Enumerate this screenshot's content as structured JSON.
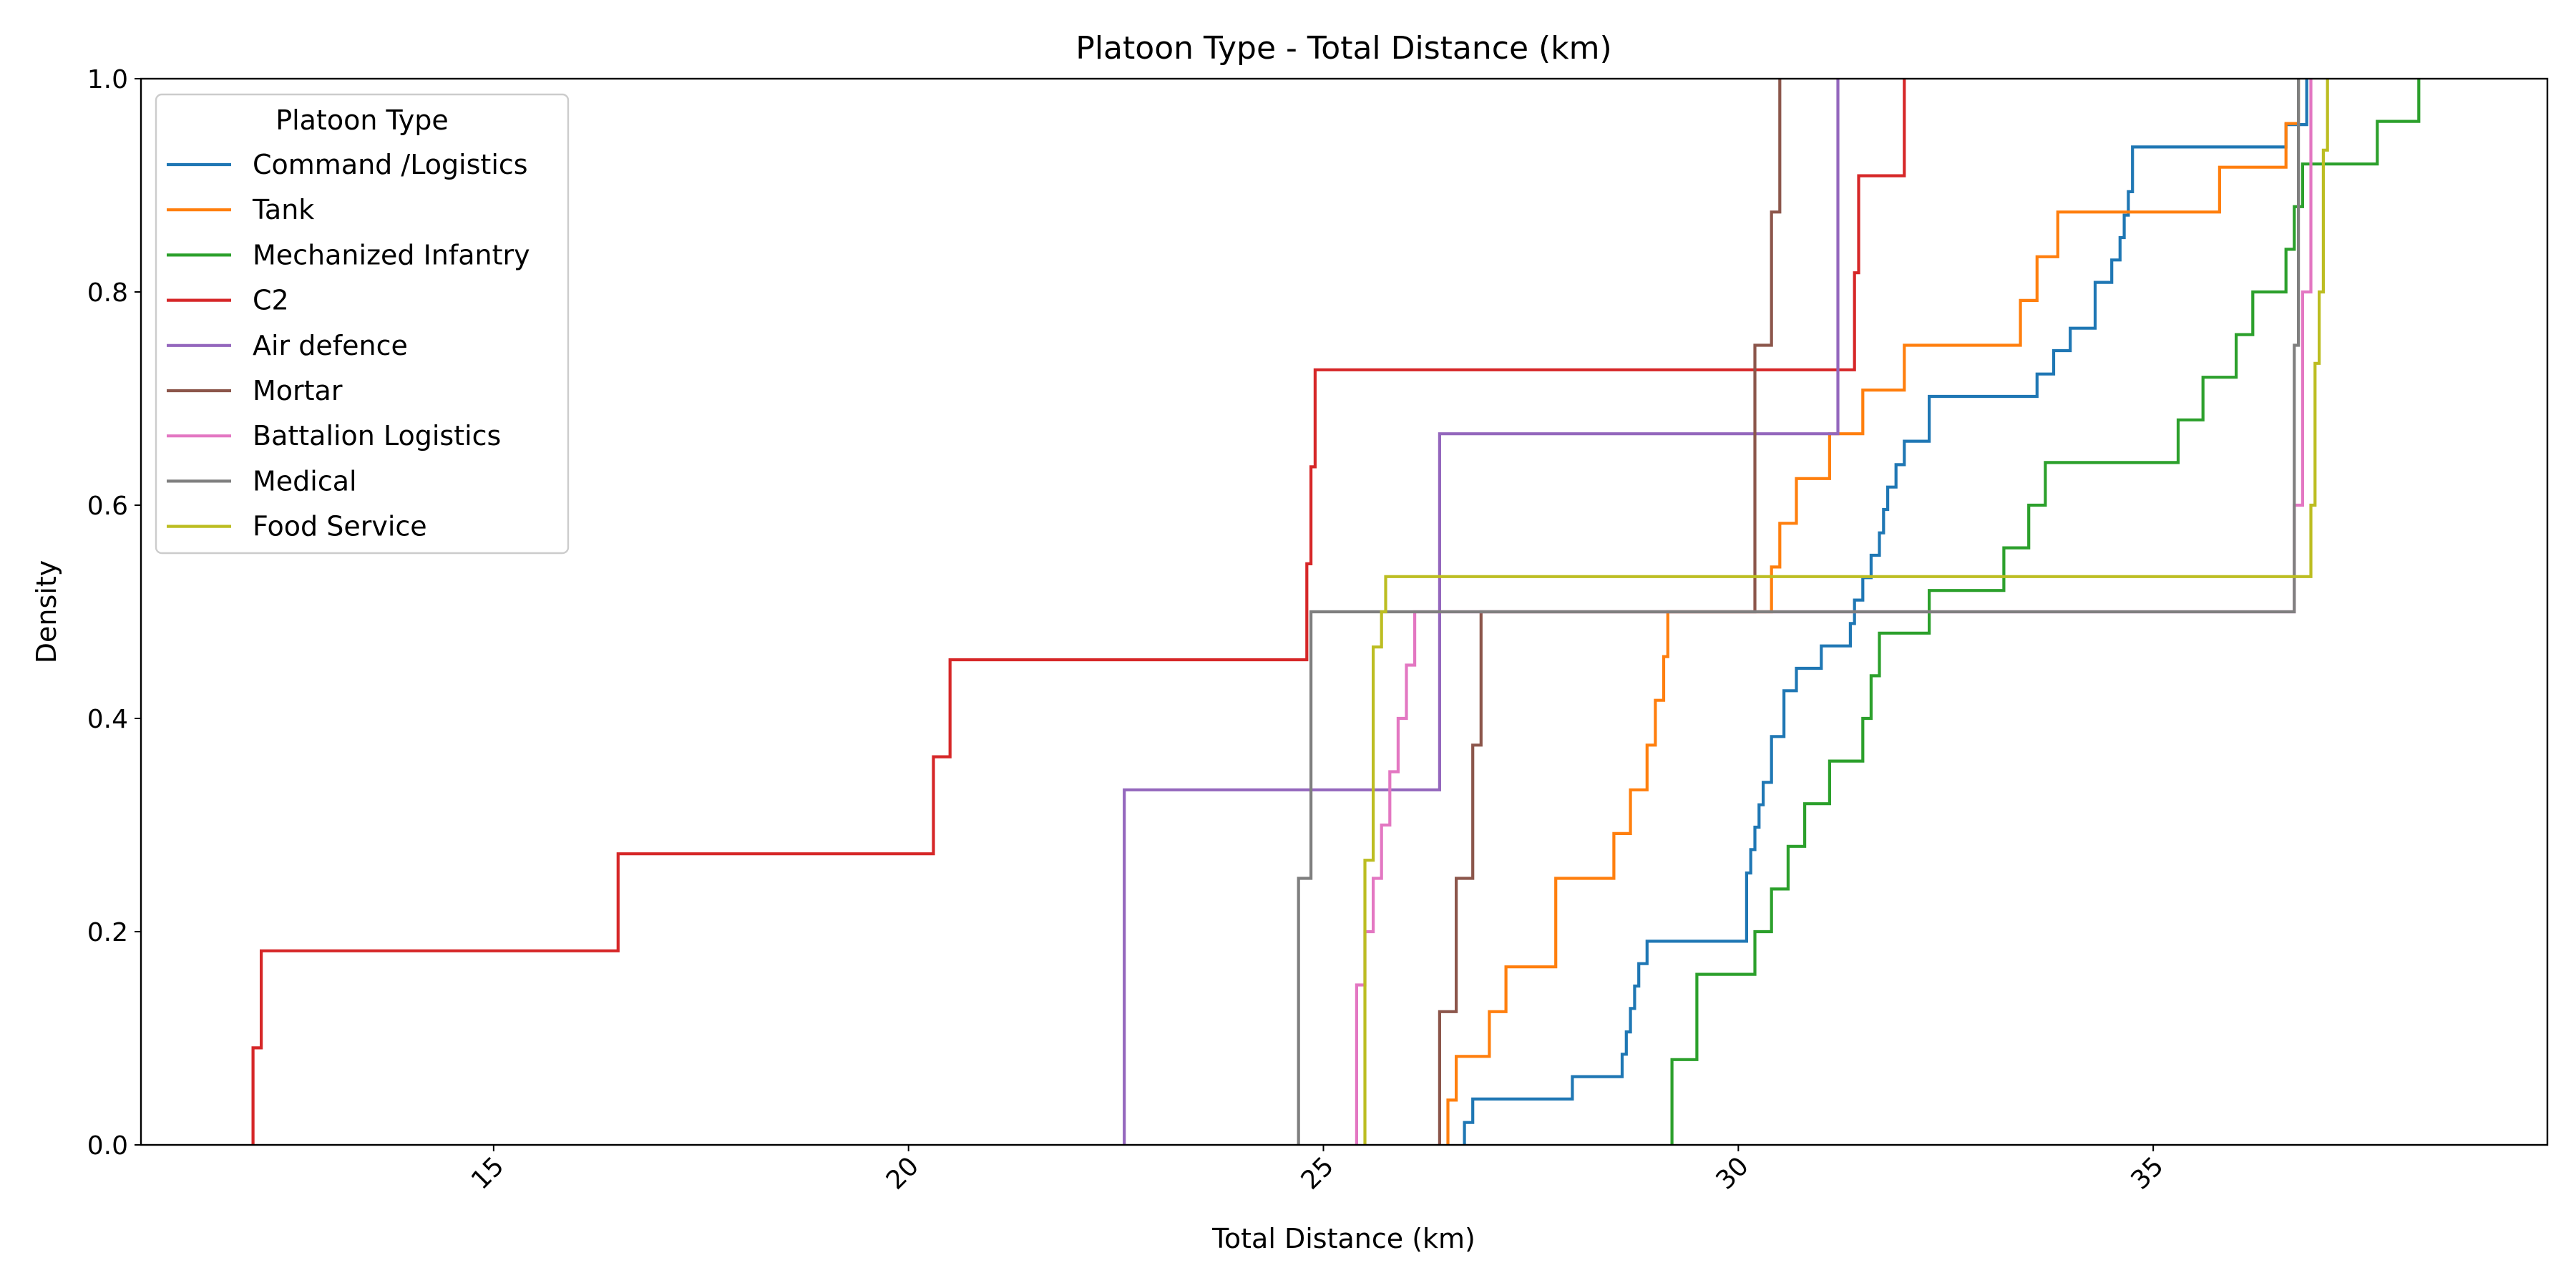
{
  "chart_data": {
    "type": "line",
    "step": true,
    "title": "Platoon Type - Total Distance (km)",
    "xlabel": "Total Distance (km)",
    "ylabel": "Density",
    "xlim": [
      10.75,
      39.75
    ],
    "ylim": [
      0,
      1
    ],
    "xticks": [
      15,
      20,
      25,
      30,
      35
    ],
    "yticks": [
      0.0,
      0.2,
      0.4,
      0.6,
      0.8,
      1.0
    ],
    "x_tick_rotation": 45,
    "grid": false,
    "legend": {
      "title": "Platoon Type",
      "position": "upper-left"
    },
    "series": [
      {
        "name": "Command /Logistics",
        "color": "#1f77b4",
        "x": [
          26.7,
          26.8,
          28.0,
          28.6,
          28.65,
          28.7,
          28.75,
          28.8,
          28.9,
          30.1,
          30.15,
          30.2,
          30.25,
          30.3,
          30.4,
          30.55,
          30.7,
          31.0,
          31.35,
          31.4,
          31.5,
          31.6,
          31.7,
          31.75,
          31.8,
          31.9,
          32.0,
          32.3,
          33.6,
          33.8,
          34.0,
          34.3,
          34.5,
          34.6,
          34.65,
          34.7,
          34.75,
          36.6,
          36.85
        ],
        "y": [
          0.021,
          0.043,
          0.064,
          0.085,
          0.106,
          0.128,
          0.149,
          0.17,
          0.191,
          0.255,
          0.277,
          0.298,
          0.319,
          0.34,
          0.383,
          0.426,
          0.447,
          0.468,
          0.489,
          0.511,
          0.532,
          0.553,
          0.574,
          0.596,
          0.617,
          0.638,
          0.66,
          0.702,
          0.723,
          0.745,
          0.766,
          0.809,
          0.83,
          0.851,
          0.872,
          0.894,
          0.936,
          0.957,
          1.0
        ]
      },
      {
        "name": "Tank",
        "color": "#ff7f0e",
        "x": [
          26.5,
          26.6,
          27.0,
          27.2,
          27.8,
          28.5,
          28.7,
          28.9,
          29.0,
          29.1,
          29.15,
          29.2,
          29.3,
          29.35,
          30.4,
          30.5,
          30.7,
          31.1,
          31.5,
          32.0,
          32.2,
          33.4,
          33.6,
          33.85,
          35.8,
          36.6,
          36.75
        ],
        "y": [
          0.042,
          0.083,
          0.125,
          0.167,
          0.25,
          0.292,
          0.333,
          0.375,
          0.417,
          0.458,
          0.5,
          0.5,
          0.5,
          0.5,
          0.542,
          0.583,
          0.625,
          0.667,
          0.708,
          0.75,
          0.75,
          0.792,
          0.833,
          0.875,
          0.917,
          0.958,
          1.0
        ]
      },
      {
        "name": "Mechanized Infantry",
        "color": "#2ca02c",
        "x": [
          29.2,
          29.5,
          30.2,
          30.4,
          30.6,
          30.8,
          31.1,
          31.5,
          31.6,
          31.7,
          32.3,
          33.2,
          33.5,
          33.7,
          35.3,
          35.6,
          36.0,
          36.2,
          36.6,
          36.7,
          36.8,
          37.7,
          38.2
        ],
        "y": [
          0.08,
          0.16,
          0.2,
          0.24,
          0.28,
          0.32,
          0.36,
          0.4,
          0.44,
          0.48,
          0.52,
          0.56,
          0.6,
          0.64,
          0.68,
          0.72,
          0.76,
          0.8,
          0.84,
          0.88,
          0.92,
          0.96,
          1.0
        ]
      },
      {
        "name": "C2",
        "color": "#d62728",
        "x": [
          12.1,
          12.2,
          16.5,
          20.3,
          20.5,
          24.8,
          24.85,
          24.9,
          31.4,
          31.45,
          32.0
        ],
        "y": [
          0.091,
          0.182,
          0.273,
          0.364,
          0.455,
          0.545,
          0.636,
          0.727,
          0.818,
          0.909,
          1.0
        ]
      },
      {
        "name": "Air defence",
        "color": "#9467bd",
        "x": [
          22.6,
          26.4,
          31.2
        ],
        "y": [
          0.333,
          0.667,
          1.0
        ]
      },
      {
        "name": "Mortar",
        "color": "#8c564b",
        "x": [
          26.4,
          26.6,
          26.8,
          26.9,
          30.2,
          30.4,
          30.5
        ],
        "y": [
          0.125,
          0.25,
          0.375,
          0.5,
          0.75,
          0.875,
          1.0
        ]
      },
      {
        "name": "Battalion Logistics",
        "color": "#e377c2",
        "x": [
          25.4,
          25.5,
          25.6,
          25.7,
          25.8,
          25.9,
          26.0,
          26.1,
          36.7,
          36.8,
          36.9
        ],
        "y": [
          0.15,
          0.2,
          0.25,
          0.3,
          0.35,
          0.4,
          0.45,
          0.5,
          0.6,
          0.8,
          1.0
        ]
      },
      {
        "name": "Medical",
        "color": "#7f7f7f",
        "x": [
          24.7,
          24.85,
          36.7,
          36.75
        ],
        "y": [
          0.25,
          0.5,
          0.75,
          1.0
        ]
      },
      {
        "name": "Food Service",
        "color": "#bcbd22",
        "x": [
          25.5,
          25.6,
          25.7,
          25.75,
          36.9,
          36.95,
          37.0,
          37.05,
          37.1
        ],
        "y": [
          0.267,
          0.467,
          0.5,
          0.533,
          0.6,
          0.733,
          0.8,
          0.933,
          1.0
        ]
      }
    ]
  }
}
